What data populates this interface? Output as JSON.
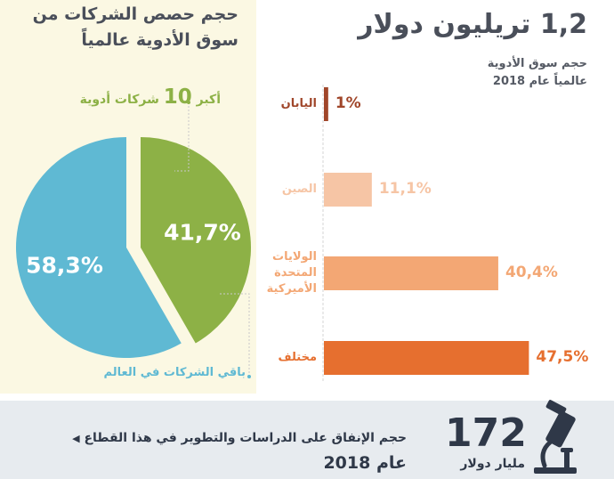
{
  "pie_section": {
    "title_line1": "حجم حصص الشركات من",
    "title_line2": "سوق الأدوية عالمياً",
    "top10_word1": "أكبر",
    "top10_number": "10",
    "top10_word2": "شركات أدوية",
    "rest_label": "باقي الشركات في العالم",
    "colors": {
      "top10": "#8db146",
      "rest": "#5fb9d3"
    }
  },
  "market_section": {
    "title": "1,2 تريليون دولار",
    "subtitle_line1": "حجم سوق الأدوية",
    "subtitle_line2": "عالمياً عام 2018"
  },
  "rd_section": {
    "value": "172",
    "unit": "مليار دولار",
    "description": "حجم الإنفاق على الدراسات والتطوير في هذا القطاع",
    "year": "عام 2018",
    "icon": "microscope-icon"
  },
  "chart_data": [
    {
      "type": "pie",
      "title": "حجم حصص الشركات من سوق الأدوية عالمياً",
      "slices": [
        {
          "label": "أكبر 10 شركات أدوية",
          "value": 41.7,
          "display": "41,7%",
          "color": "#8db146"
        },
        {
          "label": "باقي الشركات في العالم",
          "value": 58.3,
          "display": "58,3%",
          "color": "#5fb9d3"
        }
      ]
    },
    {
      "type": "bar",
      "orientation": "horizontal",
      "title": "حجم سوق الأدوية عالمياً عام 2018",
      "categories": [
        "اليابان",
        "الصين",
        "الولايات المتحدة الأميركية",
        "مختلف"
      ],
      "label_lines": [
        [
          "اليابان"
        ],
        [
          "الصين"
        ],
        [
          "الولايات",
          "المتحدة",
          "الأميركية"
        ],
        [
          "مختلف"
        ]
      ],
      "values": [
        1,
        11.1,
        40.4,
        47.5
      ],
      "display": [
        "1%",
        "11,1%",
        "40,4%",
        "47,5%"
      ],
      "colors": [
        "#a0462a",
        "#f6c5a5",
        "#f3a774",
        "#e66f2f"
      ]
    }
  ]
}
